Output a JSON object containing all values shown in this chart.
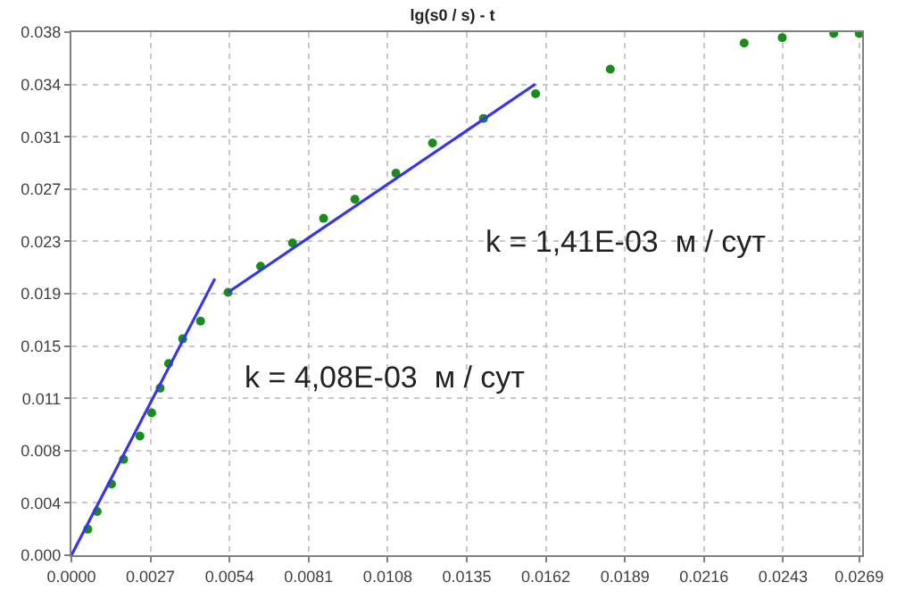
{
  "chart_data": {
    "type": "scatter",
    "title": "lg(s0 / s) - t",
    "series": [
      {
        "color": "#1a8c1a",
        "marker": "circle",
        "x": [
          0.00056,
          0.00088,
          0.00137,
          0.00178,
          0.00234,
          0.00274,
          0.00303,
          0.00332,
          0.0038,
          0.00441,
          0.00535,
          0.00646,
          0.00755,
          0.00861,
          0.00968,
          0.01108,
          0.01233,
          0.01407,
          0.01585,
          0.0184,
          0.02297,
          0.02427,
          0.02603,
          0.0269
        ],
        "values": [
          0.0019,
          0.0032,
          0.0052,
          0.007,
          0.0087,
          0.0104,
          0.0122,
          0.014,
          0.0158,
          0.0171,
          0.0192,
          0.0211,
          0.0228,
          0.0246,
          0.026,
          0.0279,
          0.0301,
          0.0319,
          0.0337,
          0.0355,
          0.0374,
          0.0378,
          0.0381,
          0.0381
        ]
      },
      {
        "type": "line",
        "color": "#3535f0",
        "marker": "none",
        "line_style": "solid",
        "x": [
          0.0,
          0.0049
        ],
        "values": [
          0.0,
          0.0202
        ]
      },
      {
        "type": "line",
        "color": "#3535f0",
        "marker": "none",
        "line_style": "solid",
        "x": [
          0.00535,
          0.01584
        ],
        "values": [
          0.0192,
          0.0344
        ]
      }
    ],
    "xlim": [
      0.0,
      0.027
    ],
    "xticks": [
      {
        "value": 0.0,
        "label": "0.0000"
      },
      0.0027,
      0.0054,
      0.0081,
      0.0108,
      0.0135,
      0.0162,
      0.0189,
      0.0216,
      0.0243,
      0.0269
    ],
    "ylim": [
      0.0,
      0.0382
    ],
    "yticks": [
      {
        "value": 0.0,
        "label": "0.000"
      },
      {
        "value": 0.00382,
        "label": "0.004"
      },
      {
        "value": 0.00764,
        "label": "0.008"
      },
      {
        "value": 0.01146,
        "label": "0.011"
      },
      {
        "value": 0.01528,
        "label": "0.015"
      },
      {
        "value": 0.0191,
        "label": "0.019"
      },
      {
        "value": 0.02292,
        "label": "0.023"
      },
      {
        "value": 0.02674,
        "label": "0.027"
      },
      {
        "value": 0.03056,
        "label": "0.031"
      },
      {
        "value": 0.03438,
        "label": "0.034"
      },
      {
        "value": 0.0382,
        "label": "0.038"
      }
    ],
    "annotations": [
      "k = 4,08E-03  м / сут",
      "k = 1,41E-03  м / сут"
    ],
    "grid": true
  }
}
